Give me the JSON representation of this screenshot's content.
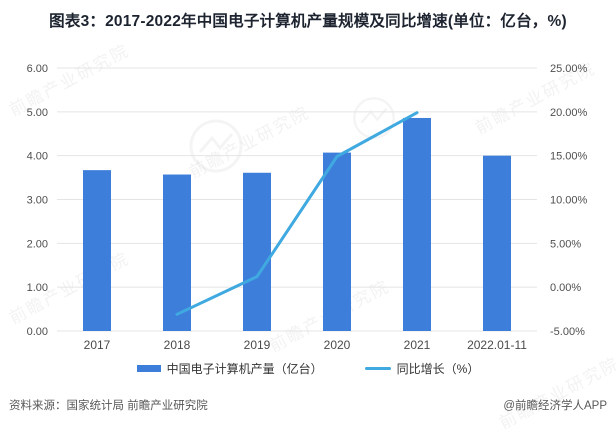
{
  "title": "图表3：2017-2022年中国电子计算机产量规模及同比增速(单位：亿台，%)",
  "chart_data": {
    "type": "bar",
    "subtype": "bar+line combo, dual y-axis",
    "title": "图表3：2017-2022年中国电子计算机产量规模及同比增速(单位：亿台，%)",
    "categories": [
      "2017",
      "2018",
      "2019",
      "2020",
      "2021",
      "2022.01-11"
    ],
    "series": [
      {
        "name": "中国电子计算机产量（亿台）",
        "type": "bar",
        "axis": "left",
        "color": "#3d7edb",
        "values": [
          3.67,
          3.57,
          3.61,
          4.07,
          4.86,
          4.0
        ]
      },
      {
        "name": "同比增长（%）",
        "type": "line",
        "axis": "right",
        "color": "#3fa9e0",
        "values": [
          null,
          -3.1,
          1.2,
          14.9,
          19.9,
          null
        ]
      }
    ],
    "left_axis": {
      "min": 0,
      "max": 6,
      "tick_labels": [
        "0.00",
        "1.00",
        "2.00",
        "3.00",
        "4.00",
        "5.00",
        "6.00"
      ]
    },
    "right_axis": {
      "min": -5,
      "max": 25,
      "tick_labels": [
        "-5.00%",
        "0.00%",
        "5.00%",
        "10.00%",
        "15.00%",
        "20.00%",
        "25.00%"
      ]
    },
    "grid": true,
    "legend_position": "bottom",
    "xlabel": "",
    "ylabel": ""
  },
  "legend": {
    "bar_label": "中国电子计算机产量（亿台）",
    "line_label": "同比增长（%）"
  },
  "footer": {
    "source": "资料来源：国家统计局 前瞻产业研究院",
    "credit": "@前瞻经济学人APP"
  },
  "watermark": {
    "text": "前瞻产业研究院"
  },
  "colors": {
    "bar": "#3d7edb",
    "line": "#3fa9e0",
    "grid": "#e4e4e4",
    "axis_text": "#4f4f4f",
    "xlabel_text": "#4a4a4a",
    "title_text": "#1d2430"
  }
}
